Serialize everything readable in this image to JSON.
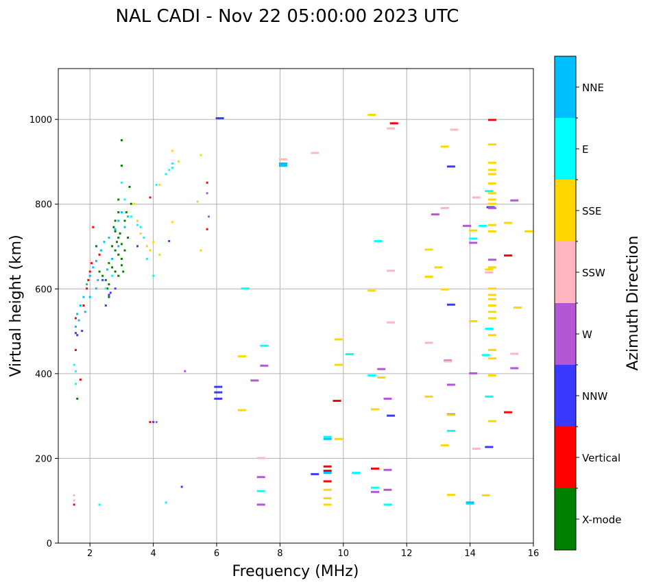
{
  "chart_data": {
    "type": "scatter",
    "title": "NAL CADI - Nov 22 05:00:00 2023 UTC",
    "xlabel": "Frequency (MHz)",
    "ylabel": "Virtual height (km)",
    "xlim": [
      1,
      16
    ],
    "ylim": [
      0,
      1120
    ],
    "xticks": [
      2,
      4,
      6,
      8,
      10,
      12,
      14,
      16
    ],
    "yticks": [
      0,
      200,
      400,
      600,
      800,
      1000
    ],
    "grid": true,
    "colorbar": {
      "label": "Azimuth Direction",
      "categories": [
        {
          "name": "X-mode",
          "color": "#008000"
        },
        {
          "name": "Vertical",
          "color": "#ff0000"
        },
        {
          "name": "NNW",
          "color": "#3a3aff"
        },
        {
          "name": "W",
          "color": "#b457d6"
        },
        {
          "name": "SSW",
          "color": "#ffb6c1"
        },
        {
          "name": "SSE",
          "color": "#ffd700"
        },
        {
          "name": "E",
          "color": "#00ffff"
        },
        {
          "name": "NNE",
          "color": "#00bfff"
        }
      ]
    },
    "series": [
      {
        "name": "X-mode",
        "points": [
          [
            3.0,
            950
          ],
          [
            3.0,
            890
          ],
          [
            2.9,
            810
          ],
          [
            2.9,
            780
          ],
          [
            2.8,
            760
          ],
          [
            2.8,
            735
          ],
          [
            2.9,
            720
          ],
          [
            3.0,
            705
          ],
          [
            2.7,
            700
          ],
          [
            2.8,
            690
          ],
          [
            2.9,
            680
          ],
          [
            3.0,
            670
          ],
          [
            2.6,
            660
          ],
          [
            2.7,
            650
          ],
          [
            2.8,
            640
          ],
          [
            2.9,
            630
          ],
          [
            2.5,
            620
          ],
          [
            2.6,
            610
          ],
          [
            3.0,
            655
          ],
          [
            3.1,
            690
          ],
          [
            3.2,
            720
          ],
          [
            2.75,
            745
          ],
          [
            3.3,
            800
          ],
          [
            3.25,
            840
          ],
          [
            2.6,
            580
          ],
          [
            2.55,
            600
          ],
          [
            2.3,
            640
          ],
          [
            2.4,
            630
          ],
          [
            3.1,
            760
          ],
          [
            2.95,
            730
          ],
          [
            1.6,
            340
          ],
          [
            2.2,
            700
          ],
          [
            3.15,
            780
          ],
          [
            2.85,
            710
          ],
          [
            3.05,
            640
          ]
        ]
      },
      {
        "name": "Vertical",
        "points": [
          [
            1.5,
            90
          ],
          [
            1.55,
            455
          ],
          [
            1.7,
            385
          ],
          [
            2.1,
            745
          ],
          [
            1.55,
            530
          ],
          [
            1.8,
            560
          ],
          [
            1.9,
            600
          ],
          [
            2.0,
            640
          ],
          [
            2.05,
            660
          ],
          [
            1.95,
            620
          ],
          [
            2.3,
            680
          ],
          [
            3.9,
            285
          ],
          [
            3.9,
            815
          ],
          [
            5.7,
            850
          ],
          [
            5.7,
            740
          ],
          [
            9.8,
            335
          ],
          [
            9.5,
            180
          ],
          [
            9.5,
            170
          ],
          [
            9.5,
            145
          ],
          [
            11.0,
            175
          ],
          [
            11.6,
            990
          ],
          [
            15.2,
            678
          ],
          [
            15.2,
            308
          ],
          [
            14.7,
            998
          ]
        ]
      },
      {
        "name": "NNW",
        "points": [
          [
            1.55,
            495
          ],
          [
            1.6,
            490
          ],
          [
            1.75,
            500
          ],
          [
            2.65,
            590
          ],
          [
            2.6,
            585
          ],
          [
            2.4,
            620
          ],
          [
            2.5,
            560
          ],
          [
            2.8,
            600
          ],
          [
            3.5,
            700
          ],
          [
            4.0,
            285
          ],
          [
            4.5,
            712
          ],
          [
            4.9,
            132
          ],
          [
            6.05,
            368
          ],
          [
            6.05,
            355
          ],
          [
            6.1,
            1002
          ],
          [
            6.05,
            340
          ],
          [
            9.1,
            162
          ],
          [
            11.5,
            300
          ],
          [
            13.4,
            888
          ],
          [
            13.4,
            562
          ],
          [
            13.4,
            303
          ],
          [
            14.6,
            226
          ],
          [
            14.65,
            792
          ]
        ]
      },
      {
        "name": "W",
        "points": [
          [
            4.1,
            285
          ],
          [
            5.0,
            405
          ],
          [
            5.7,
            825
          ],
          [
            5.75,
            770
          ],
          [
            7.2,
            383
          ],
          [
            7.5,
            418
          ],
          [
            7.4,
            155
          ],
          [
            7.4,
            90
          ],
          [
            11.2,
            410
          ],
          [
            11.4,
            340
          ],
          [
            11.4,
            172
          ],
          [
            11.4,
            125
          ],
          [
            11.0,
            120
          ],
          [
            13.3,
            430
          ],
          [
            13.4,
            373
          ],
          [
            14.1,
            400
          ],
          [
            12.9,
            775
          ],
          [
            14.1,
            708
          ],
          [
            14.7,
            668
          ],
          [
            14.7,
            790
          ],
          [
            15.4,
            808
          ],
          [
            15.4,
            412
          ],
          [
            13.9,
            748
          ]
        ]
      },
      {
        "name": "SSW",
        "points": [
          [
            1.5,
            112
          ],
          [
            1.5,
            100
          ],
          [
            7.4,
            200
          ],
          [
            8.1,
            905
          ],
          [
            9.1,
            920
          ],
          [
            11.5,
            978
          ],
          [
            11.5,
            642
          ],
          [
            11.5,
            520
          ],
          [
            12.7,
            472
          ],
          [
            13.2,
            790
          ],
          [
            13.5,
            975
          ],
          [
            14.2,
            815
          ],
          [
            14.2,
            222
          ],
          [
            14.6,
            638
          ],
          [
            15.4,
            446
          ],
          [
            13.3,
            428
          ]
        ]
      },
      {
        "name": "SSE",
        "points": [
          [
            3.4,
            800
          ],
          [
            3.5,
            760
          ],
          [
            3.6,
            730
          ],
          [
            3.8,
            700
          ],
          [
            3.9,
            690
          ],
          [
            4.0,
            710
          ],
          [
            4.2,
            680
          ],
          [
            4.2,
            845
          ],
          [
            4.6,
            757
          ],
          [
            4.6,
            925
          ],
          [
            4.8,
            900
          ],
          [
            5.4,
            805
          ],
          [
            5.5,
            915
          ],
          [
            5.5,
            690
          ],
          [
            6.8,
            440
          ],
          [
            6.8,
            313
          ],
          [
            9.5,
            125
          ],
          [
            9.5,
            105
          ],
          [
            9.5,
            90
          ],
          [
            9.85,
            480
          ],
          [
            9.85,
            420
          ],
          [
            9.85,
            245
          ],
          [
            10.9,
            1010
          ],
          [
            10.9,
            595
          ],
          [
            11.0,
            315
          ],
          [
            11.2,
            390
          ],
          [
            12.7,
            692
          ],
          [
            12.7,
            628
          ],
          [
            12.7,
            345
          ],
          [
            13.0,
            650
          ],
          [
            13.2,
            935
          ],
          [
            13.2,
            598
          ],
          [
            13.2,
            230
          ],
          [
            13.4,
            302
          ],
          [
            13.4,
            113
          ],
          [
            14.1,
            737
          ],
          [
            14.1,
            523
          ],
          [
            14.7,
            940
          ],
          [
            14.7,
            897
          ],
          [
            14.7,
            880
          ],
          [
            14.7,
            870
          ],
          [
            14.7,
            848
          ],
          [
            14.7,
            825
          ],
          [
            14.7,
            810
          ],
          [
            14.7,
            800
          ],
          [
            14.7,
            750
          ],
          [
            14.7,
            735
          ],
          [
            14.7,
            650
          ],
          [
            14.7,
            600
          ],
          [
            14.7,
            585
          ],
          [
            14.7,
            575
          ],
          [
            14.7,
            560
          ],
          [
            14.7,
            545
          ],
          [
            14.7,
            530
          ],
          [
            14.7,
            490
          ],
          [
            14.7,
            455
          ],
          [
            14.7,
            435
          ],
          [
            14.7,
            395
          ],
          [
            14.7,
            287
          ],
          [
            14.5,
            112
          ],
          [
            15.2,
            755
          ],
          [
            15.85,
            735
          ],
          [
            15.5,
            555
          ],
          [
            14.6,
            645
          ]
        ]
      },
      {
        "name": "E",
        "points": [
          [
            1.5,
            420
          ],
          [
            1.55,
            405
          ],
          [
            1.55,
            375
          ],
          [
            2.3,
            90
          ],
          [
            2.5,
            600
          ],
          [
            2.7,
            630
          ],
          [
            3.0,
            850
          ],
          [
            3.1,
            810
          ],
          [
            3.3,
            770
          ],
          [
            3.5,
            750
          ],
          [
            3.6,
            745
          ],
          [
            3.7,
            720
          ],
          [
            3.8,
            670
          ],
          [
            4.0,
            630
          ],
          [
            4.1,
            845
          ],
          [
            4.4,
            95
          ],
          [
            4.4,
            870
          ],
          [
            4.5,
            880
          ],
          [
            4.6,
            885
          ],
          [
            4.6,
            895
          ],
          [
            6.9,
            600
          ],
          [
            7.5,
            465
          ],
          [
            7.4,
            122
          ],
          [
            9.5,
            250
          ],
          [
            10.2,
            445
          ],
          [
            10.4,
            165
          ],
          [
            10.9,
            395
          ],
          [
            11.0,
            130
          ],
          [
            11.1,
            712
          ],
          [
            11.4,
            90
          ],
          [
            13.4,
            264
          ],
          [
            14.0,
            92
          ],
          [
            14.6,
            830
          ],
          [
            14.6,
            505
          ],
          [
            14.6,
            345
          ],
          [
            14.5,
            443
          ],
          [
            14.1,
            718
          ],
          [
            14.4,
            748
          ]
        ]
      },
      {
        "name": "NNE",
        "points": [
          [
            1.55,
            510
          ],
          [
            1.6,
            540
          ],
          [
            1.7,
            560
          ],
          [
            1.8,
            580
          ],
          [
            1.9,
            610
          ],
          [
            2.0,
            630
          ],
          [
            2.1,
            650
          ],
          [
            2.2,
            665
          ],
          [
            2.35,
            690
          ],
          [
            2.45,
            710
          ],
          [
            2.6,
            720
          ],
          [
            2.8,
            740
          ],
          [
            2.9,
            760
          ],
          [
            3.0,
            780
          ],
          [
            3.2,
            770
          ],
          [
            3.1,
            745
          ],
          [
            2.7,
            670
          ],
          [
            2.55,
            645
          ],
          [
            2.2,
            600
          ],
          [
            2.0,
            580
          ],
          [
            1.85,
            545
          ],
          [
            1.65,
            525
          ],
          [
            8.1,
            895
          ],
          [
            8.1,
            890
          ],
          [
            9.5,
            165
          ],
          [
            14.0,
            95
          ],
          [
            9.5,
            245
          ],
          [
            2.25,
            620
          ],
          [
            2.9,
            700
          ]
        ]
      }
    ]
  }
}
